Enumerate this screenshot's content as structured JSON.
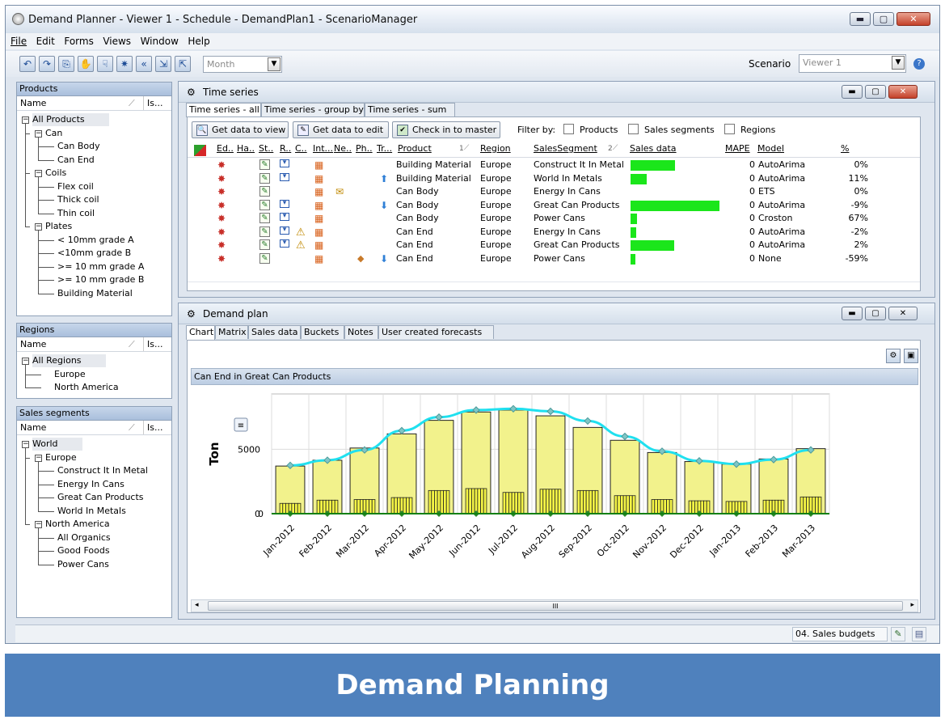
{
  "window": {
    "title": "Demand Planner - Viewer 1 - Schedule - DemandPlan1 - ScenarioManager"
  },
  "menu": [
    "File",
    "Edit",
    "Forms",
    "Views",
    "Window",
    "Help"
  ],
  "toolbar": {
    "period_value": "Month",
    "scenario_label": "Scenario",
    "scenario_value": "Viewer 1"
  },
  "products": {
    "header": "Products",
    "col_name": "Name",
    "col_is": "Is...",
    "items": [
      {
        "label": "All Products",
        "level": 0,
        "exp": true
      },
      {
        "label": "Can",
        "level": 1,
        "exp": true
      },
      {
        "label": "Can Body",
        "level": 2
      },
      {
        "label": "Can End",
        "level": 2
      },
      {
        "label": "Coils",
        "level": 1,
        "exp": true
      },
      {
        "label": "Flex coil",
        "level": 2
      },
      {
        "label": "Thick coil",
        "level": 2
      },
      {
        "label": "Thin coil",
        "level": 2
      },
      {
        "label": "Plates",
        "level": 1,
        "exp": true
      },
      {
        "label": "< 10mm grade A",
        "level": 2
      },
      {
        "label": "<10mm grade B",
        "level": 2
      },
      {
        "label": ">= 10 mm grade A",
        "level": 2
      },
      {
        "label": ">= 10 mm grade B",
        "level": 2
      },
      {
        "label": "Building Material",
        "level": 2
      }
    ]
  },
  "regions": {
    "header": "Regions",
    "col_name": "Name",
    "col_is": "Is...",
    "items": [
      {
        "label": "All Regions",
        "level": 0,
        "exp": true
      },
      {
        "label": "Europe",
        "level": 1
      },
      {
        "label": "North America",
        "level": 1
      }
    ]
  },
  "segments": {
    "header": "Sales segments",
    "col_name": "Name",
    "col_is": "Is...",
    "items": [
      {
        "label": "World",
        "level": 0,
        "exp": true
      },
      {
        "label": "Europe",
        "level": 1,
        "exp": true
      },
      {
        "label": "Construct It In Metal",
        "level": 2
      },
      {
        "label": "Energy In Cans",
        "level": 2
      },
      {
        "label": "Great Can Products",
        "level": 2
      },
      {
        "label": "World In Metals",
        "level": 2
      },
      {
        "label": "North America",
        "level": 1,
        "exp": true
      },
      {
        "label": "All Organics",
        "level": 2
      },
      {
        "label": "Good Foods",
        "level": 2
      },
      {
        "label": "Power Cans",
        "level": 2
      }
    ]
  },
  "timeseries": {
    "title": "Time series",
    "tabs": [
      "Time series - all",
      "Time series - group by",
      "Time series - sum"
    ],
    "buttons": {
      "view": "Get data to view",
      "edit": "Get data to edit",
      "checkin": "Check in to master"
    },
    "filter_label": "Filter by:",
    "filters": [
      "Products",
      "Sales segments",
      "Regions"
    ],
    "columns": {
      "ed": "Ed..",
      "ha": "Ha..",
      "st": "St..",
      "r": "R..",
      "c": "C..",
      "int": "Int...",
      "ne": "Ne..",
      "ph": "Ph..",
      "tr": "Tr...",
      "product": "Product",
      "product_sort": "1",
      "region": "Region",
      "segment": "SalesSegment",
      "segment_sort": "2",
      "sales": "Sales data",
      "mape": "MAPE",
      "model": "Model",
      "pct": "%"
    },
    "rows": [
      {
        "product": "Building Material",
        "region": "Europe",
        "segment": "Construct It In Metal",
        "sales": 0.5,
        "mape": "0",
        "model": "AutoArima",
        "pct": "0%",
        "trend": "",
        "warn": false,
        "r": true,
        "ne": false,
        "ph": false
      },
      {
        "product": "Building Material",
        "region": "Europe",
        "segment": "World In Metals",
        "sales": 0.18,
        "mape": "0",
        "model": "AutoArima",
        "pct": "11%",
        "trend": "up",
        "warn": false,
        "r": true,
        "ne": false,
        "ph": false
      },
      {
        "product": "Can Body",
        "region": "Europe",
        "segment": "Energy In Cans",
        "sales": 0,
        "mape": "0",
        "model": "ETS",
        "pct": "0%",
        "trend": "",
        "warn": false,
        "r": false,
        "ne": true,
        "ph": false
      },
      {
        "product": "Can Body",
        "region": "Europe",
        "segment": "Great Can Products",
        "sales": 1.0,
        "mape": "0",
        "model": "AutoArima",
        "pct": "-9%",
        "trend": "down",
        "warn": false,
        "r": true,
        "ne": false,
        "ph": false
      },
      {
        "product": "Can Body",
        "region": "Europe",
        "segment": "Power Cans",
        "sales": 0.07,
        "mape": "0",
        "model": "Croston",
        "pct": "67%",
        "trend": "",
        "warn": false,
        "r": true,
        "ne": false,
        "ph": false
      },
      {
        "product": "Can End",
        "region": "Europe",
        "segment": "Energy In Cans",
        "sales": 0.06,
        "mape": "0",
        "model": "AutoArima",
        "pct": "-2%",
        "trend": "",
        "warn": true,
        "r": true,
        "ne": false,
        "ph": false
      },
      {
        "product": "Can End",
        "region": "Europe",
        "segment": "Great Can Products",
        "sales": 0.49,
        "mape": "0",
        "model": "AutoArima",
        "pct": "2%",
        "trend": "",
        "warn": true,
        "r": true,
        "ne": false,
        "ph": false
      },
      {
        "product": "Can End",
        "region": "Europe",
        "segment": "Power Cans",
        "sales": 0.05,
        "mape": "0",
        "model": "None",
        "pct": "-59%",
        "trend": "down",
        "warn": false,
        "r": false,
        "ne": false,
        "ph": true
      }
    ]
  },
  "demandplan": {
    "title": "Demand plan",
    "tabs": [
      "Chart",
      "Matrix",
      "Sales data",
      "Buckets",
      "Notes",
      "User created forecasts"
    ],
    "chart_title": "Can End in Great Can Products",
    "scroll_grip": "III"
  },
  "chart_data": {
    "type": "bar",
    "title": "Can End in Great Can Products",
    "ylabel": "Ton",
    "xlabel": "",
    "ylim": [
      0,
      9300
    ],
    "yticks": [
      0,
      5000
    ],
    "categories": [
      "Jan-2012",
      "Feb-2012",
      "Mar-2012",
      "Apr-2012",
      "May-2012",
      "Jun-2012",
      "Jul-2012",
      "Aug-2012",
      "Sep-2012",
      "Oct-2012",
      "Nov-2012",
      "Dec-2012",
      "Jan-2013",
      "Feb-2013",
      "Mar-2013"
    ],
    "series": [
      {
        "values": [
          3700,
          4150,
          5100,
          6200,
          7250,
          7900,
          8050,
          7600,
          6700,
          5700,
          4750,
          4050,
          3850,
          4250,
          5050
        ]
      },
      {
        "values": [
          800,
          1050,
          1100,
          1250,
          1800,
          1950,
          1650,
          1900,
          1800,
          1400,
          1100,
          1000,
          950,
          1050,
          1300
        ]
      },
      {
        "values": [
          3750,
          4150,
          4950,
          6450,
          7500,
          8050,
          8150,
          7950,
          7200,
          6000,
          4850,
          4100,
          3850,
          4200,
          4950
        ]
      }
    ],
    "grid": true,
    "colors": {
      "bar": "#f2f28c",
      "inner": "#f5f545",
      "line": "#20e0ef",
      "marker": "#7fc6c6",
      "baseline": "#148014"
    }
  },
  "statusbar": {
    "budget": "04. Sales budgets"
  },
  "banner": {
    "text": "Demand Planning"
  }
}
